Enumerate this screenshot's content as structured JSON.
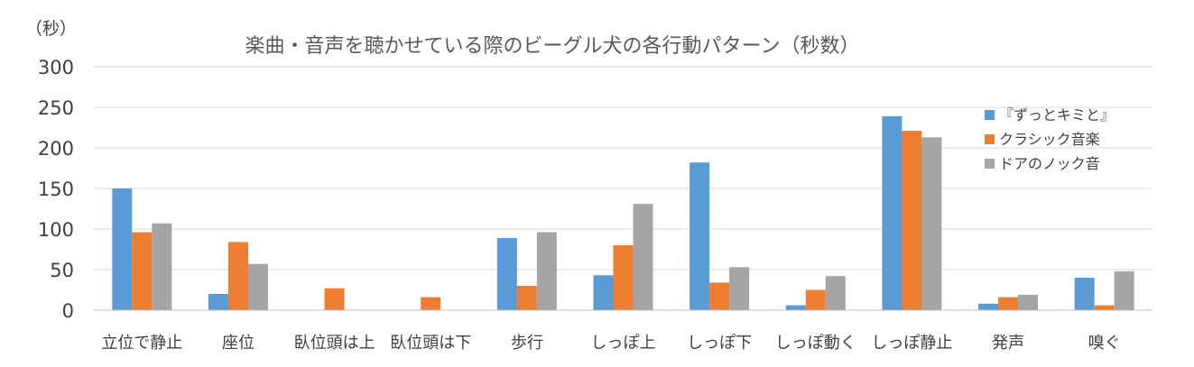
{
  "chart_data": {
    "type": "bar",
    "title": "楽曲・音声を聴かせている際のビーグル犬の各行動パターン（秒数）",
    "ylabel": "（秒）",
    "ylim": [
      0,
      300
    ],
    "yticks": [
      0,
      50,
      100,
      150,
      200,
      250,
      300
    ],
    "grid": true,
    "legend_position": "right",
    "categories": [
      "立位で静止",
      "座位",
      "臥位頭は上",
      "臥位頭は下",
      "歩行",
      "しっぽ上",
      "しっぽ下",
      "しっぽ動く",
      "しっぽ静止",
      "発声",
      "嗅ぐ"
    ],
    "series": [
      {
        "name": "『ずっとキミと』",
        "color": "#5b9bd5",
        "values": [
          150,
          20,
          0,
          0,
          89,
          43,
          182,
          6,
          239,
          8,
          40
        ]
      },
      {
        "name": "クラシック音楽",
        "color": "#ed7d31",
        "values": [
          96,
          84,
          27,
          16,
          30,
          80,
          34,
          25,
          221,
          16,
          6
        ]
      },
      {
        "name": "ドアのノック音",
        "color": "#a5a5a5",
        "values": [
          107,
          57,
          0,
          0,
          96,
          131,
          53,
          42,
          213,
          19,
          48
        ]
      }
    ]
  }
}
